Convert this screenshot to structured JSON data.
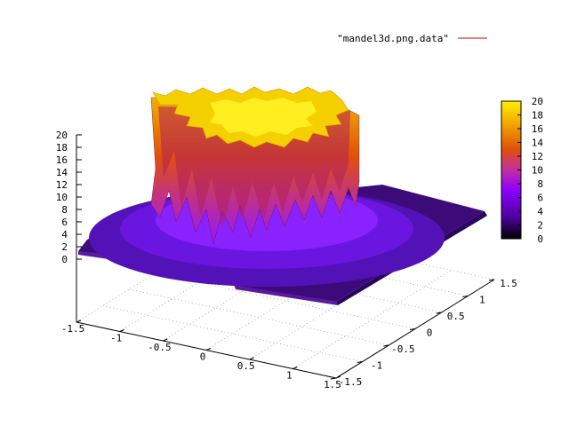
{
  "chart_data": {
    "type": "surface3d",
    "title": "",
    "legend": [
      {
        "name": "\"mandel3d.png.data\"",
        "color": "#cc0000"
      }
    ],
    "legend_position": "top-right",
    "x_axis": {
      "range": [
        -1.5,
        1.5
      ],
      "ticks": [
        "-1.5",
        "-1",
        "-0.5",
        "0",
        "0.5",
        "1",
        "1.5"
      ]
    },
    "y_axis": {
      "range": [
        -1.5,
        1.5
      ],
      "ticks": [
        "-1.5",
        "-1",
        "-0.5",
        "0",
        "0.5",
        "1",
        "1.5"
      ]
    },
    "z_axis": {
      "range": [
        0,
        20
      ],
      "ticks": [
        "0",
        "2",
        "4",
        "6",
        "8",
        "10",
        "12",
        "14",
        "16",
        "18",
        "20"
      ]
    },
    "colorbox": {
      "range": [
        0,
        20
      ],
      "ticks": [
        "0",
        "2",
        "4",
        "6",
        "8",
        "10",
        "12",
        "14",
        "16",
        "18",
        "20"
      ],
      "palette": [
        "#000000",
        "#4b0098",
        "#8b00ff",
        "#c02f9f",
        "#e0500a",
        "#f0a000",
        "#ffee00"
      ]
    },
    "grid": true,
    "surface": {
      "description_values": {
        "plateau_value": 20,
        "floor_value": 0,
        "outer_ring_value_approx": 2,
        "inner_ring_value_approx": 6
      }
    }
  }
}
